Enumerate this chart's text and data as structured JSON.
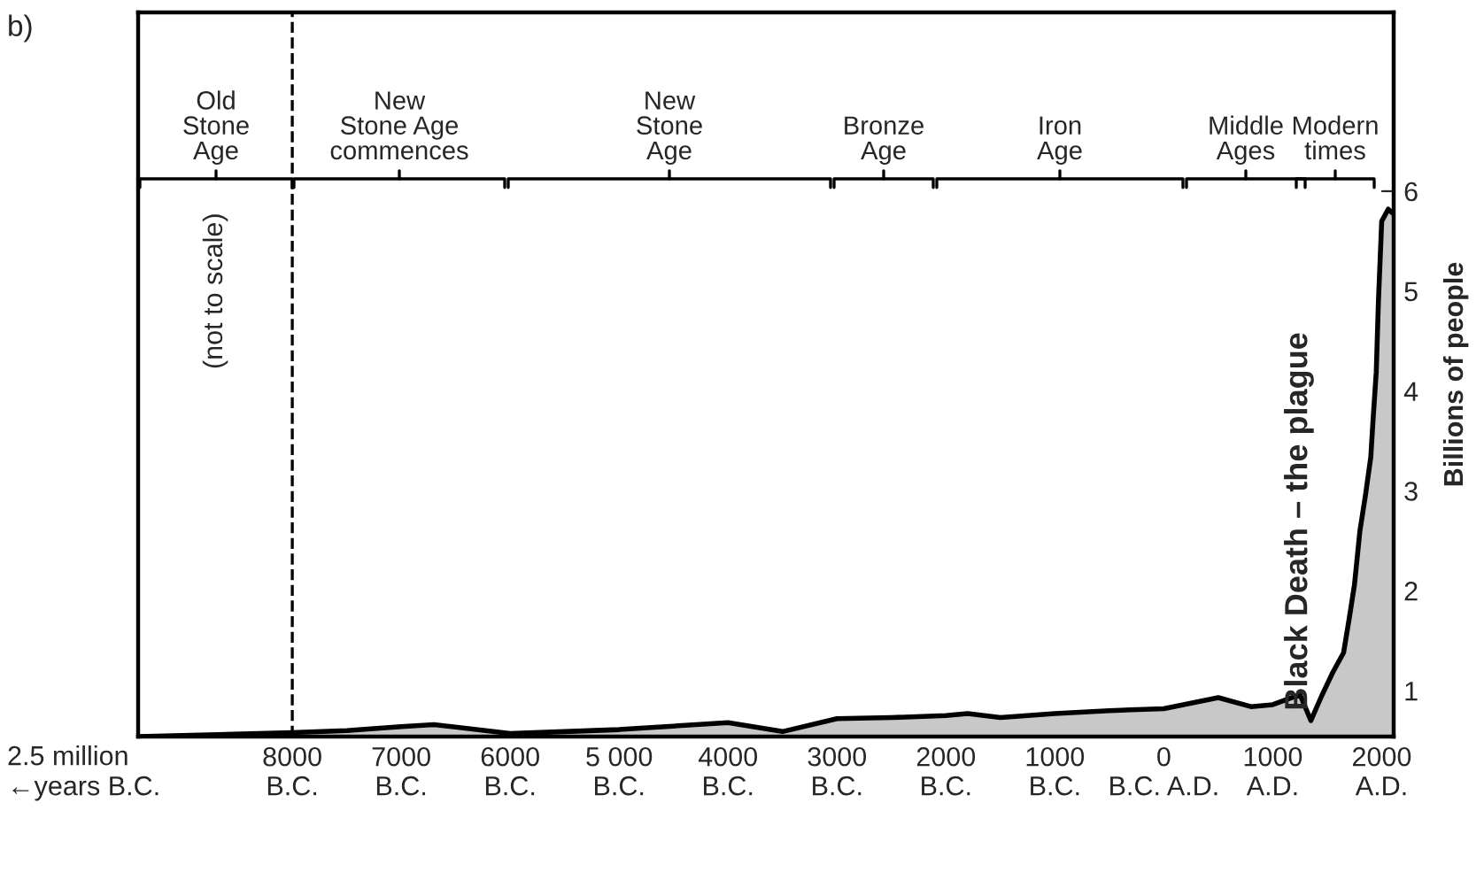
{
  "chart_data": {
    "type": "area",
    "x": [
      -9415,
      -8000,
      -7500,
      -7000,
      -6700,
      -6000,
      -5000,
      -4000,
      -3500,
      -3000,
      -2500,
      -2000,
      -1800,
      -1500,
      -1000,
      -500,
      0,
      500,
      800,
      1000,
      1250,
      1350,
      1450,
      1550,
      1650,
      1700,
      1750,
      1800,
      1850,
      1900,
      1920,
      1950,
      1970,
      2000,
      2060,
      2100
    ],
    "series": [
      {
        "color": "#c8c8c8",
        "values": [
          0.54,
          0.58,
          0.6,
          0.64,
          0.66,
          0.57,
          0.61,
          0.68,
          0.59,
          0.72,
          0.73,
          0.75,
          0.77,
          0.73,
          0.77,
          0.8,
          0.82,
          0.93,
          0.84,
          0.86,
          0.96,
          0.7,
          0.95,
          1.18,
          1.38,
          1.71,
          2.06,
          2.6,
          2.95,
          3.34,
          3.7,
          4.19,
          4.9,
          5.7,
          5.82,
          5.78
        ]
      }
    ],
    "xlim": [
      -9415,
      2110
    ],
    "xticks": [
      {
        "value": -8000,
        "label": "8000\nB.C."
      },
      {
        "value": -7000,
        "label": "7000\nB.C."
      },
      {
        "value": -6000,
        "label": "6000\nB.C."
      },
      {
        "value": -5000,
        "label": "5 000\nB.C."
      },
      {
        "value": -4000,
        "label": "4000\nB.C."
      },
      {
        "value": -3000,
        "label": "3000\nB.C."
      },
      {
        "value": -2000,
        "label": "2000\nB.C."
      },
      {
        "value": -1000,
        "label": "1000\nB.C."
      },
      {
        "value": 0,
        "label": "0\nB.C. A.D."
      },
      {
        "value": 1000,
        "label": "1000\nA.D."
      },
      {
        "value": 2000,
        "label": "2000\nA.D."
      }
    ],
    "ylim": [
      0.54,
      7.79
    ],
    "yticks": [
      1,
      2,
      3,
      4,
      5,
      6
    ],
    "y2label": "Billions of people",
    "ref_lines": [
      {
        "axis": "x",
        "value": -8000,
        "line_style": "dashed"
      }
    ],
    "annotations": [
      "b)",
      "(not to scale)",
      "2.5 million\n←years B.C.",
      {
        "text": "Black Death – the plague",
        "x": 1350,
        "y": 0.7
      },
      "Old\nStone\nAge",
      "New\nStone Age\ncommences",
      "New\nStone\nAge",
      "Bronze\nAge",
      "Iron\nAge",
      "Middle\nAges",
      "Modern\ntimes"
    ],
    "grid": false,
    "legend": false
  }
}
